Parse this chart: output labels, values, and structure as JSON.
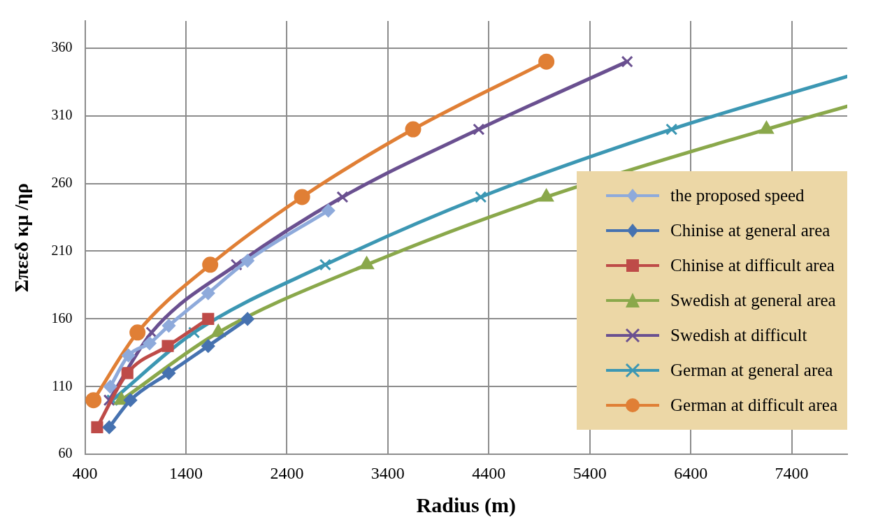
{
  "chart_data": {
    "type": "line",
    "xlabel": "Radius (m)",
    "ylabel": "Σπεεδ κμ /ηρ",
    "xlim": [
      400,
      7950
    ],
    "ylim": [
      60,
      380
    ],
    "xticks": [
      400,
      1400,
      2400,
      3400,
      4400,
      5400,
      6400,
      7400
    ],
    "yticks": [
      60,
      110,
      160,
      210,
      260,
      310,
      360
    ],
    "grid": true,
    "legend": "bottom right",
    "line_style": "solid",
    "series": [
      {
        "name": "the proposed speed",
        "color": "#8eaadb",
        "marker": "diamond",
        "x": [
          650,
          830,
          1040,
          1230,
          1620,
          2010,
          2810
        ],
        "values": [
          110,
          133,
          142,
          155,
          179,
          203,
          240
        ]
      },
      {
        "name": "Chinise at general area",
        "color": "#4672b0",
        "marker": "diamond",
        "x": [
          640,
          850,
          1230,
          1620,
          2010
        ],
        "values": [
          80,
          100,
          120,
          140,
          160
        ]
      },
      {
        "name": "Chinise at difficult area",
        "color": "#be4b48",
        "marker": "square",
        "x": [
          520,
          820,
          1220,
          1620
        ],
        "values": [
          80,
          120,
          140,
          160
        ]
      },
      {
        "name": "Swedish at general area",
        "color": "#8aa84b",
        "marker": "triangle",
        "x": [
          760,
          1720,
          3190,
          4970,
          7150,
          7950
        ],
        "values": [
          100,
          150,
          200,
          250,
          300,
          317
        ]
      },
      {
        "name": "Swedish at difficult",
        "color": "#6a5090",
        "marker": "cross",
        "x": [
          640,
          1060,
          1900,
          2950,
          4300,
          5770
        ],
        "values": [
          100,
          150,
          200,
          250,
          300,
          350
        ]
      },
      {
        "name": "German at general area",
        "color": "#3c97b3",
        "marker": "cross",
        "x": [
          670,
          1480,
          2780,
          4320,
          6210,
          7950
        ],
        "values": [
          100,
          150,
          200,
          250,
          300,
          339
        ]
      },
      {
        "name": "German at difficult area",
        "color": "#e07f35",
        "marker": "circle",
        "x": [
          484,
          920,
          1640,
          2550,
          3650,
          4970
        ],
        "values": [
          100,
          150,
          200,
          250,
          300,
          350
        ]
      }
    ]
  }
}
